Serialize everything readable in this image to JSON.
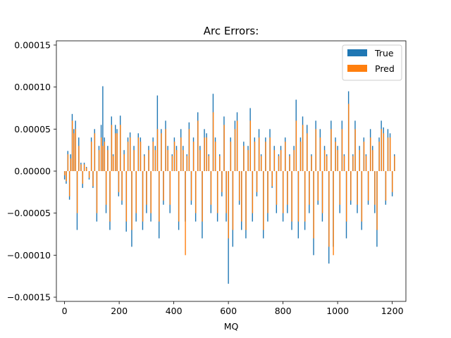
{
  "chart_data": {
    "type": "bar",
    "title": "Arc Errors:",
    "xlabel": "MQ",
    "ylabel": "",
    "xlim": [
      -30,
      1250
    ],
    "ylim": [
      -0.000155,
      0.000155
    ],
    "xticks": [
      0,
      200,
      400,
      600,
      800,
      1000,
      1200
    ],
    "yticks": [
      -0.00015,
      -0.0001,
      -5e-05,
      0.0,
      5e-05,
      0.0001,
      0.00015
    ],
    "ytick_labels": [
      "−0.00015",
      "−0.00010",
      "−0.00005",
      "0.00000",
      "0.00005",
      "0.00010",
      "0.00015"
    ],
    "legend": {
      "placement": "top-right",
      "entries": [
        "True",
        "Pred"
      ]
    },
    "grid": false,
    "series": [
      {
        "name": "True",
        "color": "#1f77b4"
      },
      {
        "name": "Pred",
        "color": "#ff7f0e"
      }
    ],
    "x": [
      0,
      6,
      12,
      18,
      22,
      28,
      34,
      40,
      46,
      52,
      60,
      66,
      72,
      80,
      90,
      98,
      104,
      110,
      118,
      126,
      134,
      140,
      146,
      152,
      158,
      166,
      172,
      178,
      186,
      192,
      198,
      204,
      210,
      218,
      226,
      232,
      240,
      246,
      254,
      262,
      270,
      278,
      286,
      292,
      300,
      308,
      316,
      324,
      332,
      340,
      346,
      354,
      362,
      370,
      378,
      386,
      394,
      402,
      410,
      418,
      426,
      434,
      442,
      448,
      456,
      464,
      472,
      480,
      488,
      496,
      504,
      512,
      520,
      528,
      536,
      544,
      552,
      560,
      568,
      576,
      584,
      592,
      600,
      608,
      616,
      624,
      632,
      640,
      648,
      656,
      664,
      672,
      680,
      688,
      696,
      704,
      712,
      720,
      728,
      736,
      744,
      752,
      760,
      768,
      776,
      784,
      792,
      800,
      808,
      816,
      824,
      832,
      840,
      848,
      856,
      864,
      872,
      880,
      888,
      896,
      904,
      912,
      920,
      928,
      936,
      944,
      952,
      960,
      968,
      976,
      984,
      992,
      1000,
      1008,
      1016,
      1024,
      1032,
      1040,
      1048,
      1056,
      1064,
      1072,
      1080,
      1088,
      1096,
      1104,
      1112,
      1120,
      1128,
      1136,
      1144,
      1152,
      1160,
      1168,
      1176,
      1184,
      1192,
      1200,
      1208
    ],
    "true_values": [
      -1e-05,
      -1.5e-05,
      2.4e-05,
      -3.4e-05,
      2e-05,
      6.8e-05,
      5e-05,
      6e-05,
      -7e-05,
      4e-05,
      1e-05,
      -2e-05,
      1e-05,
      5e-06,
      -1e-05,
      4e-05,
      -2e-05,
      5e-05,
      -6e-05,
      3e-05,
      5.5e-05,
      0.000101,
      4e-05,
      -5e-05,
      3e-05,
      -7e-05,
      6.5e-05,
      2e-05,
      5.5e-05,
      5e-05,
      -3e-05,
      6.6e-05,
      -4e-05,
      2.5e-05,
      -7.2e-05,
      4e-05,
      4.6e-05,
      -9e-05,
      3e-05,
      -6e-05,
      4.5e-05,
      4e-05,
      -7e-05,
      2e-05,
      -5e-05,
      3e-05,
      -6e-05,
      4e-05,
      3e-05,
      9e-05,
      -8e-05,
      5e-05,
      -4e-05,
      6e-05,
      3e-05,
      -5e-05,
      2e-05,
      4e-05,
      3e-05,
      -7e-05,
      5e-05,
      3e-05,
      -6e-05,
      2e-05,
      5.8e-05,
      -4e-05,
      4e-05,
      -6e-05,
      7e-05,
      3e-05,
      -8e-05,
      5e-05,
      4.5e-05,
      2e-05,
      -5e-05,
      9.2e-05,
      4e-05,
      -6e-05,
      2e-05,
      -3e-05,
      6.5e-05,
      -6e-05,
      -0.000134,
      4e-05,
      -9e-05,
      6e-05,
      7e-05,
      -4e-05,
      -7e-05,
      3.5e-05,
      -8e-05,
      3e-05,
      7.5e-05,
      -6e-05,
      4e-05,
      -3e-05,
      5e-05,
      2e-05,
      -8e-05,
      4e-05,
      -6e-05,
      5e-05,
      -2e-05,
      3e-05,
      -5e-05,
      2e-05,
      3e-05,
      -6e-05,
      4e-05,
      -5e-05,
      2e-05,
      -7e-05,
      3e-05,
      8.5e-05,
      -8e-05,
      4e-05,
      6.5e-05,
      -7e-05,
      5.5e-05,
      -5e-05,
      2e-05,
      -0.0001,
      6e-05,
      -4e-05,
      5e-05,
      -6e-05,
      3e-05,
      2e-05,
      -0.00011,
      6e-05,
      -9e-05,
      4e-05,
      3e-05,
      -5e-05,
      6e-05,
      2e-05,
      -8e-05,
      9.5e-05,
      -4e-05,
      2e-05,
      6e-05,
      -5e-05,
      3e-05,
      -7e-05,
      4e-05,
      2e-05,
      -4e-05,
      5e-05,
      3e-05,
      -5e-05,
      -9e-05,
      4e-05,
      6e-05,
      5.2e-05,
      -4e-05,
      5e-05,
      4.5e-05,
      -3e-05,
      2e-05,
      1e-05
    ],
    "pred_values": [
      -5e-06,
      -1.2e-05,
      2e-05,
      -3e-05,
      1.5e-05,
      6e-05,
      4.5e-05,
      5e-05,
      -5e-05,
      3e-05,
      8e-06,
      -1.5e-05,
      8e-06,
      4e-06,
      -8e-06,
      3.5e-05,
      -1.8e-05,
      4.5e-05,
      -5e-05,
      2.5e-05,
      4e-05,
      3e-05,
      3.5e-05,
      -4e-05,
      2.5e-05,
      -6e-05,
      5.5e-05,
      1.8e-05,
      4.5e-05,
      4.5e-05,
      -2.5e-05,
      5.5e-05,
      -3.5e-05,
      2e-05,
      -6e-05,
      3.5e-05,
      4e-05,
      -7e-05,
      2.5e-05,
      -5e-05,
      4e-05,
      3.5e-05,
      -6e-05,
      1.8e-05,
      -4e-05,
      2.5e-05,
      -5e-05,
      3.5e-05,
      2.5e-05,
      5e-05,
      -6e-05,
      4.5e-05,
      -3.5e-05,
      5e-05,
      2.5e-05,
      -4e-05,
      1.8e-05,
      3.5e-05,
      2.5e-05,
      -6e-05,
      4e-05,
      2.5e-05,
      -0.0001,
      1.8e-05,
      5e-05,
      -3.5e-05,
      3.5e-05,
      -5e-05,
      6e-05,
      2.5e-05,
      -6e-05,
      4e-05,
      4e-05,
      1.8e-05,
      -4e-05,
      7e-05,
      3.5e-05,
      -5e-05,
      1.8e-05,
      -2.5e-05,
      5.5e-05,
      -5e-05,
      -8e-05,
      3.5e-05,
      -7e-05,
      5e-05,
      6e-05,
      -3.5e-05,
      -6e-05,
      3e-05,
      -7e-05,
      2.5e-05,
      6e-05,
      -5e-05,
      3.5e-05,
      -2.5e-05,
      4e-05,
      1.8e-05,
      -7e-05,
      3.5e-05,
      -5e-05,
      4e-05,
      -1.8e-05,
      2.5e-05,
      -4e-05,
      1.8e-05,
      2.5e-05,
      -5e-05,
      3.5e-05,
      -4e-05,
      1.8e-05,
      -6e-05,
      2.5e-05,
      6e-05,
      -6e-05,
      3.5e-05,
      5.5e-05,
      -6e-05,
      4.5e-05,
      -4e-05,
      1.8e-05,
      -8e-05,
      5e-05,
      -3.5e-05,
      4e-05,
      -5e-05,
      2.5e-05,
      1.8e-05,
      -9e-05,
      5e-05,
      -0.0001,
      3.5e-05,
      2.5e-05,
      -4e-05,
      5e-05,
      1.8e-05,
      -6e-05,
      8e-05,
      -3.5e-05,
      1.8e-05,
      5e-05,
      -4e-05,
      2.5e-05,
      -6e-05,
      3.5e-05,
      1.8e-05,
      -3.5e-05,
      4e-05,
      2.5e-05,
      -4e-05,
      -7e-05,
      3.5e-05,
      5e-05,
      4.5e-05,
      -3.5e-05,
      4e-05,
      4e-05,
      -2.5e-05,
      1.8e-05,
      8e-06
    ]
  }
}
